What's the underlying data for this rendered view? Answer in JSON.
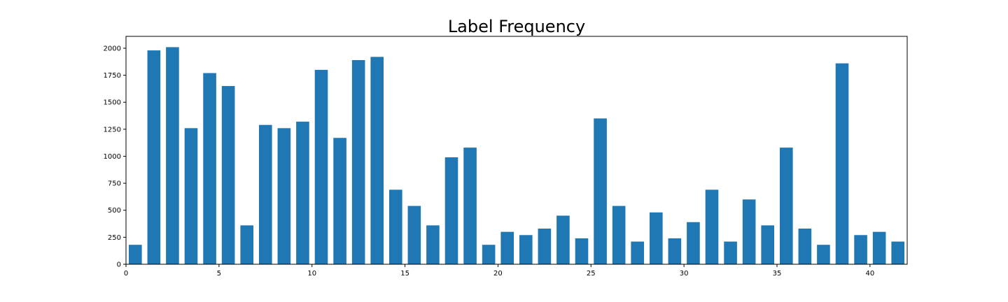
{
  "chart_data": {
    "type": "bar",
    "title": "Label Frequency",
    "xlabel": "",
    "ylabel": "",
    "xlim": [
      0,
      42
    ],
    "ylim": [
      0,
      2110
    ],
    "grid": false,
    "bar_color": "#1f77b4",
    "bar_width": 0.7,
    "x": [
      0,
      1,
      2,
      3,
      4,
      5,
      6,
      7,
      8,
      9,
      10,
      11,
      12,
      13,
      14,
      15,
      16,
      17,
      18,
      19,
      20,
      21,
      22,
      23,
      24,
      25,
      26,
      27,
      28,
      29,
      30,
      31,
      32,
      33,
      34,
      35,
      36,
      37,
      38,
      39,
      40,
      41
    ],
    "values": [
      180,
      1980,
      2010,
      1260,
      1770,
      1650,
      360,
      1290,
      1260,
      1320,
      1800,
      1170,
      1890,
      1920,
      690,
      540,
      360,
      990,
      1080,
      180,
      300,
      270,
      330,
      450,
      240,
      1350,
      540,
      210,
      480,
      240,
      390,
      690,
      210,
      600,
      360,
      1080,
      330,
      180,
      1860,
      270,
      300,
      210
    ],
    "xticks": [
      0,
      5,
      10,
      15,
      20,
      25,
      30,
      35,
      40
    ],
    "xtick_labels": [
      "0",
      "5",
      "10",
      "15",
      "20",
      "25",
      "30",
      "35",
      "40"
    ],
    "yticks": [
      0,
      250,
      500,
      750,
      1000,
      1250,
      1500,
      1750,
      2000
    ],
    "ytick_labels": [
      "0",
      "250",
      "500",
      "750",
      "1000",
      "1250",
      "1500",
      "1750",
      "2000"
    ]
  }
}
